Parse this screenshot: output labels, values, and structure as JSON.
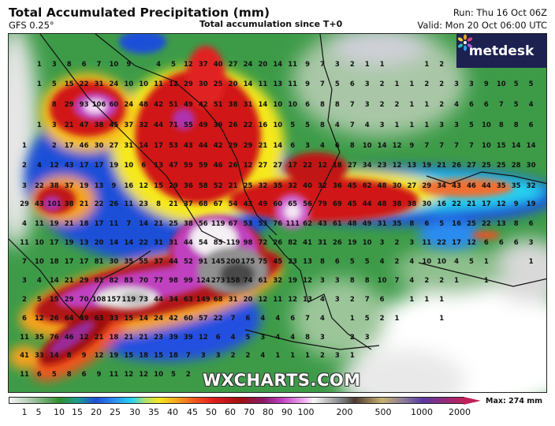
{
  "header": {
    "title": "Total Accumulated Precipitation (mm)",
    "model": "GFS 0.25°",
    "subtitle": "Total accumulation since T+0",
    "run": "Run: Thu 16 Oct 06Z",
    "valid": "Valid: Mon 20 Oct 06:00 UTC"
  },
  "logo": {
    "text": "metdesk",
    "icon": "metdesk-burst-icon"
  },
  "watermark": "WXCHARTS.COM",
  "legend": {
    "ticks": [
      "1",
      "5",
      "10",
      "15",
      "20",
      "25",
      "30",
      "35",
      "40",
      "45",
      "50",
      "60",
      "70",
      "80",
      "90",
      "100",
      "200",
      "500",
      "1000",
      "2000"
    ],
    "max_label": "Max: 274 mm"
  },
  "map": {
    "grid_values": [
      [
        "",
        "1",
        "3",
        "8",
        "6",
        "7",
        "10",
        "9",
        "",
        "4",
        "5",
        "12",
        "37",
        "40",
        "27",
        "24",
        "20",
        "14",
        "11",
        "9",
        "7",
        "3",
        "2",
        "1",
        "1",
        "",
        "",
        "1",
        "2",
        "",
        "",
        "",
        "",
        "",
        ""
      ],
      [
        "",
        "1",
        "5",
        "15",
        "22",
        "31",
        "24",
        "10",
        "10",
        "11",
        "12",
        "29",
        "30",
        "25",
        "20",
        "14",
        "11",
        "13",
        "11",
        "9",
        "7",
        "5",
        "6",
        "3",
        "2",
        "1",
        "1",
        "2",
        "2",
        "3",
        "3",
        "9",
        "10",
        "5",
        "5"
      ],
      [
        "",
        "",
        "8",
        "29",
        "93",
        "106",
        "60",
        "24",
        "48",
        "42",
        "51",
        "49",
        "42",
        "51",
        "38",
        "31",
        "14",
        "10",
        "10",
        "6",
        "8",
        "8",
        "7",
        "3",
        "2",
        "2",
        "1",
        "1",
        "2",
        "4",
        "6",
        "6",
        "7",
        "5",
        "4"
      ],
      [
        "",
        "1",
        "3",
        "21",
        "47",
        "38",
        "45",
        "37",
        "32",
        "44",
        "71",
        "55",
        "49",
        "39",
        "26",
        "22",
        "16",
        "10",
        "5",
        "5",
        "8",
        "4",
        "7",
        "4",
        "3",
        "1",
        "1",
        "1",
        "3",
        "3",
        "5",
        "10",
        "8",
        "8",
        "6"
      ],
      [
        "1",
        "",
        "2",
        "17",
        "46",
        "30",
        "27",
        "31",
        "14",
        "17",
        "53",
        "43",
        "44",
        "42",
        "29",
        "29",
        "21",
        "14",
        "6",
        "3",
        "4",
        "6",
        "8",
        "10",
        "14",
        "12",
        "9",
        "7",
        "7",
        "7",
        "7",
        "10",
        "15",
        "14",
        "14"
      ],
      [
        "2",
        "4",
        "12",
        "43",
        "17",
        "17",
        "19",
        "10",
        "6",
        "13",
        "47",
        "59",
        "59",
        "46",
        "26",
        "12",
        "27",
        "27",
        "17",
        "22",
        "12",
        "18",
        "27",
        "34",
        "23",
        "12",
        "13",
        "19",
        "21",
        "26",
        "27",
        "25",
        "25",
        "28",
        "30"
      ],
      [
        "3",
        "22",
        "38",
        "37",
        "19",
        "13",
        "9",
        "16",
        "12",
        "15",
        "29",
        "36",
        "58",
        "52",
        "21",
        "25",
        "32",
        "35",
        "32",
        "40",
        "32",
        "36",
        "45",
        "62",
        "48",
        "30",
        "27",
        "29",
        "34",
        "43",
        "46",
        "44",
        "35",
        "35",
        "32"
      ],
      [
        "29",
        "43",
        "101",
        "38",
        "21",
        "22",
        "26",
        "11",
        "23",
        "8",
        "21",
        "37",
        "68",
        "67",
        "54",
        "43",
        "49",
        "60",
        "65",
        "56",
        "79",
        "69",
        "45",
        "44",
        "48",
        "38",
        "38",
        "30",
        "16",
        "22",
        "21",
        "17",
        "12",
        "9",
        "19"
      ],
      [
        "4",
        "11",
        "19",
        "21",
        "18",
        "17",
        "11",
        "7",
        "14",
        "21",
        "25",
        "38",
        "56",
        "119",
        "67",
        "53",
        "53",
        "76",
        "111",
        "62",
        "43",
        "61",
        "48",
        "49",
        "31",
        "35",
        "8",
        "6",
        "5",
        "16",
        "25",
        "22",
        "13",
        "8",
        "6"
      ],
      [
        "11",
        "10",
        "17",
        "19",
        "13",
        "20",
        "14",
        "14",
        "22",
        "31",
        "31",
        "44",
        "54",
        "85",
        "119",
        "98",
        "72",
        "26",
        "82",
        "41",
        "31",
        "26",
        "19",
        "10",
        "3",
        "2",
        "3",
        "11",
        "22",
        "17",
        "12",
        "6",
        "6",
        "6",
        "3"
      ],
      [
        "7",
        "10",
        "18",
        "17",
        "17",
        "81",
        "30",
        "35",
        "55",
        "37",
        "44",
        "52",
        "91",
        "145",
        "200",
        "175",
        "75",
        "45",
        "23",
        "13",
        "8",
        "6",
        "5",
        "5",
        "4",
        "2",
        "4",
        "10",
        "10",
        "4",
        "5",
        "1",
        "",
        "",
        "1"
      ],
      [
        "3",
        "4",
        "14",
        "21",
        "29",
        "81",
        "82",
        "83",
        "70",
        "77",
        "98",
        "99",
        "124",
        "273",
        "158",
        "74",
        "61",
        "32",
        "19",
        "12",
        "3",
        "3",
        "8",
        "8",
        "10",
        "7",
        "4",
        "2",
        "2",
        "1",
        "",
        "1",
        "",
        "",
        ""
      ],
      [
        "2",
        "5",
        "15",
        "29",
        "70",
        "108",
        "157",
        "119",
        "73",
        "44",
        "34",
        "63",
        "149",
        "68",
        "31",
        "20",
        "12",
        "11",
        "12",
        "13",
        "4",
        "3",
        "2",
        "7",
        "6",
        "",
        "1",
        "1",
        "1",
        "",
        "",
        "",
        "",
        "",
        ""
      ],
      [
        "6",
        "12",
        "26",
        "64",
        "49",
        "63",
        "33",
        "15",
        "14",
        "24",
        "42",
        "60",
        "57",
        "22",
        "7",
        "6",
        "4",
        "4",
        "6",
        "7",
        "4",
        "",
        "1",
        "5",
        "2",
        "1",
        "",
        "",
        "1",
        "",
        "",
        "",
        "",
        "",
        ""
      ],
      [
        "11",
        "35",
        "76",
        "46",
        "12",
        "21",
        "18",
        "21",
        "21",
        "23",
        "39",
        "39",
        "12",
        "6",
        "4",
        "5",
        "3",
        "4",
        "4",
        "8",
        "3",
        "",
        "2",
        "3",
        "",
        "",
        "",
        "",
        "",
        "",
        "",
        "",
        "",
        "",
        ""
      ],
      [
        "41",
        "33",
        "14",
        "8",
        "9",
        "12",
        "19",
        "15",
        "18",
        "15",
        "18",
        "7",
        "3",
        "3",
        "2",
        "2",
        "4",
        "1",
        "1",
        "1",
        "2",
        "3",
        "1",
        "",
        "",
        "",
        "",
        "",
        "",
        "",
        "",
        "",
        "",
        "",
        ""
      ],
      [
        "11",
        "6",
        "5",
        "8",
        "6",
        "9",
        "11",
        "12",
        "12",
        "10",
        "5",
        "2",
        "",
        "",
        "",
        "",
        "",
        "",
        "",
        "",
        "",
        "",
        "",
        "",
        "",
        "",
        "",
        "",
        "",
        "",
        "",
        "",
        "",
        "",
        ""
      ]
    ]
  }
}
